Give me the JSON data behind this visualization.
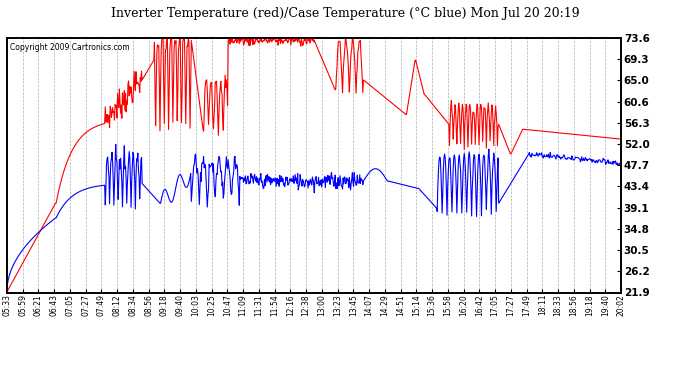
{
  "title": "Inverter Temperature (red)/Case Temperature (°C blue) Mon Jul 20 20:19",
  "copyright": "Copyright 2009 Cartronics.com",
  "ylabel_right_ticks": [
    21.9,
    26.2,
    30.5,
    34.8,
    39.1,
    43.4,
    47.7,
    52.0,
    56.3,
    60.6,
    65.0,
    69.3,
    73.6
  ],
  "ymin": 21.9,
  "ymax": 73.6,
  "background_color": "#ffffff",
  "plot_bg_color": "#ffffff",
  "grid_color": "#b0b0b0",
  "red_color": "#ff0000",
  "blue_color": "#0000ff",
  "x_tick_labels": [
    "05:33",
    "05:59",
    "06:21",
    "06:43",
    "07:05",
    "07:27",
    "07:49",
    "08:12",
    "08:34",
    "08:56",
    "09:18",
    "09:40",
    "10:03",
    "10:25",
    "10:47",
    "11:09",
    "11:31",
    "11:54",
    "12:16",
    "12:38",
    "13:00",
    "13:23",
    "13:45",
    "14:07",
    "14:29",
    "14:51",
    "15:14",
    "15:36",
    "15:58",
    "16:20",
    "16:42",
    "17:05",
    "17:27",
    "17:49",
    "18:11",
    "18:33",
    "18:56",
    "19:18",
    "19:40",
    "20:02"
  ]
}
